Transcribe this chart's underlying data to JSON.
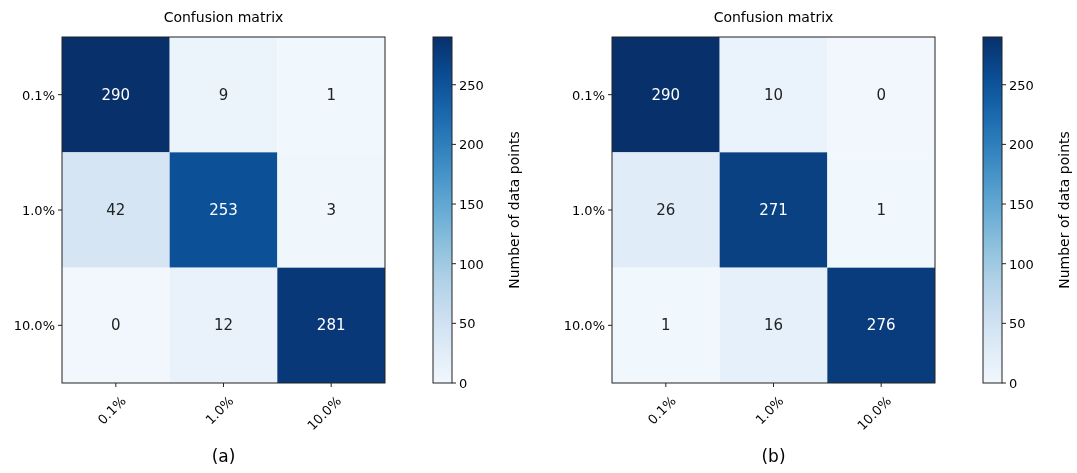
{
  "chart_data": [
    {
      "type": "heatmap",
      "title": "Confusion matrix",
      "categories": [
        "0.1%",
        "1.0%",
        "10.0%"
      ],
      "y_categories": [
        "0.1%",
        "1.0%",
        "10.0%"
      ],
      "cells": [
        [
          290,
          9,
          1
        ],
        [
          42,
          253,
          3
        ],
        [
          0,
          12,
          281
        ]
      ],
      "clim": [
        0,
        290
      ],
      "cticks": [
        0,
        50,
        100,
        150,
        200,
        250
      ],
      "clabel": "Number of data points",
      "data_labels": true,
      "annotations": [
        "(a)"
      ]
    },
    {
      "type": "heatmap",
      "title": "Confusion matrix",
      "categories": [
        "0.1%",
        "1.0%",
        "10.0%"
      ],
      "y_categories": [
        "0.1%",
        "1.0%",
        "10.0%"
      ],
      "cells": [
        [
          290,
          10,
          0
        ],
        [
          26,
          271,
          1
        ],
        [
          1,
          16,
          276
        ]
      ],
      "clim": [
        0,
        290
      ],
      "cticks": [
        0,
        50,
        100,
        150,
        200,
        250
      ],
      "clabel": "Number of data points",
      "data_labels": true,
      "annotations": [
        "(b)"
      ]
    }
  ]
}
